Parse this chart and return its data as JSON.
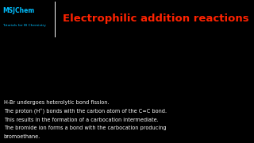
{
  "title": "Electrophilic addition reactions",
  "title_color": "#FF2200",
  "header_bg": "#1a1a1a",
  "logo_text1": "MSJChem",
  "logo_text2": "Tutorials for IB Chemistry",
  "logo_color": "#00BFFF",
  "diagram_bg": "#f0f0f0",
  "body_bg": "#000000",
  "description_lines": [
    "H-Br undergoes heterolytic bond fission.",
    "The proton (H⁺) bonds with the carbon atom of the C=C bond.",
    "This results in the formation of a carbocation intermediate.",
    "The bromide ion forms a bond with the carbocation producing",
    "bromoethane."
  ],
  "text_color": "#ffffff"
}
